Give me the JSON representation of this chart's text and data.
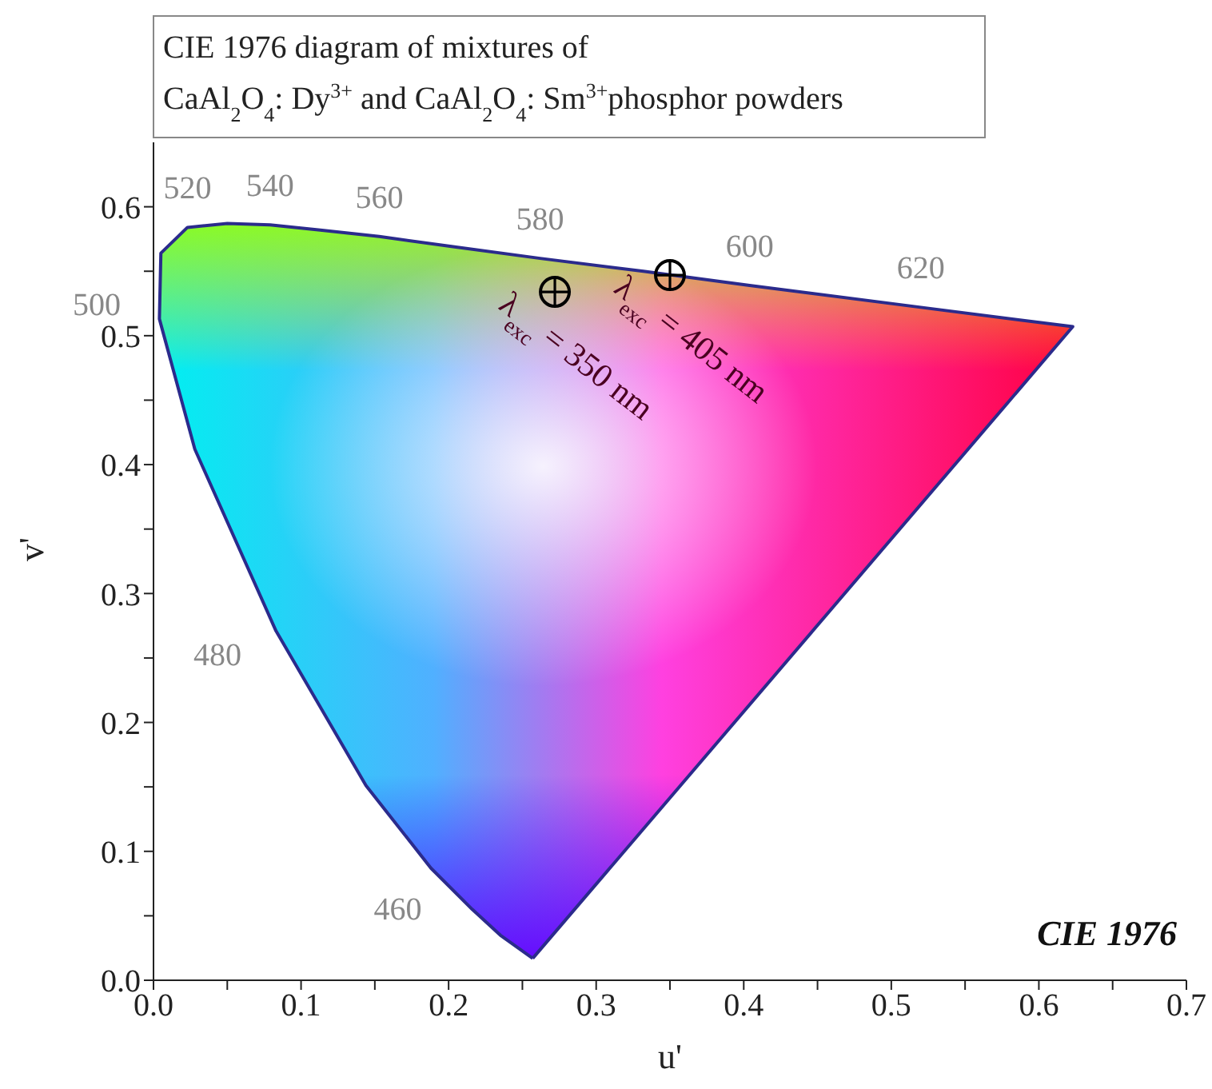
{
  "chart_data": {
    "type": "scatter",
    "title": "CIE 1976 diagram of mixtures of\nCaAl$_{2}$O$_{4}$: Dy$^{3+}$ and CaAl$_{2}$O$_{4}$: Sm$^{3+}$phosphor powders",
    "xlabel": "u'",
    "ylabel": "v'",
    "xlim": [
      0,
      0.7
    ],
    "ylim": [
      0,
      0.65
    ],
    "xticks": [
      {
        "value": 0,
        "label": "0.0"
      },
      {
        "value": 0.05,
        "label": null
      },
      {
        "value": 0.1,
        "label": "0.1"
      },
      {
        "value": 0.15,
        "label": null
      },
      {
        "value": 0.2,
        "label": "0.2"
      },
      {
        "value": 0.25,
        "label": null
      },
      {
        "value": 0.3,
        "label": "0.3"
      },
      {
        "value": 0.35,
        "label": null
      },
      {
        "value": 0.4,
        "label": "0.4"
      },
      {
        "value": 0.45,
        "label": null
      },
      {
        "value": 0.5,
        "label": "0.5"
      },
      {
        "value": 0.55,
        "label": null
      },
      {
        "value": 0.6,
        "label": "0.6"
      },
      {
        "value": 0.65,
        "label": null
      },
      {
        "value": 0.7,
        "label": "0.7"
      }
    ],
    "yticks": [
      {
        "value": 0,
        "label": "0.0"
      },
      {
        "value": 0.05,
        "label": null
      },
      {
        "value": 0.1,
        "label": "0.1"
      },
      {
        "value": 0.15,
        "label": null
      },
      {
        "value": 0.2,
        "label": "0.2"
      },
      {
        "value": 0.25,
        "label": null
      },
      {
        "value": 0.3,
        "label": "0.3"
      },
      {
        "value": 0.35,
        "label": null
      },
      {
        "value": 0.4,
        "label": "0.4"
      },
      {
        "value": 0.45,
        "label": null
      },
      {
        "value": 0.5,
        "label": "0.5"
      },
      {
        "value": 0.55,
        "label": null
      },
      {
        "value": 0.6,
        "label": "0.6"
      }
    ],
    "series": [
      {
        "type": "area",
        "color": "#2b2b8c",
        "marker": "none",
        "line_style": "solid",
        "x": [
          0.257,
          0.235,
          0.216,
          0.188,
          0.144,
          0.083,
          0.028,
          0.004,
          0.005,
          0.023,
          0.05,
          0.079,
          0.113,
          0.153,
          0.203,
          0.262,
          0.332,
          0.404,
          0.52,
          0.623,
          0.257
        ],
        "values": [
          0.017,
          0.035,
          0.055,
          0.087,
          0.151,
          0.271,
          0.412,
          0.513,
          0.564,
          0.584,
          0.587,
          0.586,
          0.582,
          0.577,
          0.569,
          0.56,
          0.55,
          0.539,
          0.522,
          0.507,
          0.017
        ]
      },
      {
        "color": "#000000",
        "marker": "circle",
        "x": [
          0.272,
          0.35
        ],
        "values": [
          0.534,
          0.547
        ]
      }
    ],
    "annotations": [
      {
        "text": "460",
        "x": 0.188,
        "y": 0.087
      },
      {
        "text": "480",
        "x": 0.083,
        "y": 0.271
      },
      {
        "text": "500",
        "x": 0.004,
        "y": 0.513
      },
      {
        "text": "520",
        "x": 0.023,
        "y": 0.584
      },
      {
        "text": "540",
        "x": 0.079,
        "y": 0.586
      },
      {
        "text": "560",
        "x": 0.153,
        "y": 0.577
      },
      {
        "text": "580",
        "x": 0.262,
        "y": 0.56
      },
      {
        "text": "600",
        "x": 0.404,
        "y": 0.539
      },
      {
        "text": "620",
        "x": 0.52,
        "y": 0.522
      },
      {
        "text": "λ$_{exc}$ = 350 nm",
        "x": 0.272,
        "y": 0.534
      },
      {
        "text": "λ$_{exc}$ = 405 nm",
        "x": 0.35,
        "y": 0.547
      },
      "CIE 1976"
    ]
  }
}
